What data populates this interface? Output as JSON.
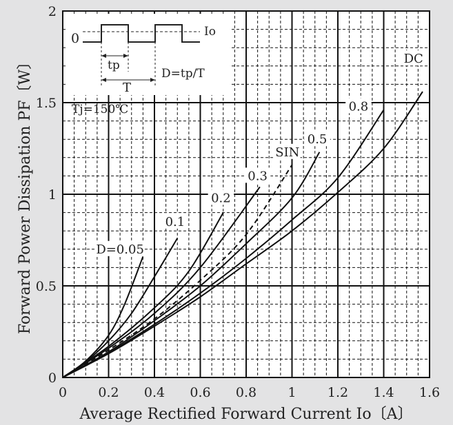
{
  "chart_data": {
    "type": "line",
    "title": "",
    "xlabel": "Average Rectified Forward Current Io〔A〕",
    "ylabel": "Forward Power Dissipation PF〔W〕",
    "xlim": [
      0,
      1.6
    ],
    "ylim": [
      0,
      2
    ],
    "x_ticks": [
      0,
      0.2,
      0.4,
      0.6,
      0.8,
      1,
      1.2,
      1.4,
      1.6
    ],
    "x_tick_labels": [
      "0",
      "0.2",
      "0.4",
      "0.6",
      "0.8",
      "1",
      "1.2",
      "1.4",
      "1.6"
    ],
    "y_ticks": [
      0,
      0.5,
      1,
      1.5,
      2
    ],
    "y_tick_labels": [
      "0",
      "0.5",
      "1",
      "1.5",
      "2"
    ],
    "grid": true,
    "series": [
      {
        "name": "D=0.05",
        "style": "solid",
        "points": [
          [
            0,
            0
          ],
          [
            0.1,
            0.09
          ],
          [
            0.2,
            0.23
          ],
          [
            0.27,
            0.4
          ],
          [
            0.35,
            0.66
          ]
        ]
      },
      {
        "name": "0.1",
        "style": "solid",
        "points": [
          [
            0,
            0
          ],
          [
            0.1,
            0.085
          ],
          [
            0.2,
            0.2
          ],
          [
            0.3,
            0.35
          ],
          [
            0.4,
            0.55
          ],
          [
            0.5,
            0.76
          ]
        ]
      },
      {
        "name": "0.2",
        "style": "solid",
        "points": [
          [
            0,
            0
          ],
          [
            0.2,
            0.17
          ],
          [
            0.4,
            0.38
          ],
          [
            0.55,
            0.58
          ],
          [
            0.7,
            0.9
          ]
        ]
      },
      {
        "name": "0.3",
        "style": "solid",
        "points": [
          [
            0,
            0
          ],
          [
            0.2,
            0.16
          ],
          [
            0.4,
            0.35
          ],
          [
            0.6,
            0.6
          ],
          [
            0.86,
            1.04
          ]
        ]
      },
      {
        "name": "SIN",
        "style": "dashed",
        "points": [
          [
            0,
            0
          ],
          [
            0.2,
            0.15
          ],
          [
            0.4,
            0.32
          ],
          [
            0.6,
            0.53
          ],
          [
            0.8,
            0.78
          ],
          [
            1,
            1.16
          ]
        ]
      },
      {
        "name": "0.5",
        "style": "solid",
        "points": [
          [
            0,
            0
          ],
          [
            0.2,
            0.14
          ],
          [
            0.4,
            0.31
          ],
          [
            0.6,
            0.5
          ],
          [
            0.8,
            0.73
          ],
          [
            1,
            0.98
          ],
          [
            1.12,
            1.23
          ]
        ]
      },
      {
        "name": "0.8",
        "style": "solid",
        "points": [
          [
            0,
            0
          ],
          [
            0.2,
            0.135
          ],
          [
            0.4,
            0.29
          ],
          [
            0.6,
            0.46
          ],
          [
            0.8,
            0.65
          ],
          [
            1,
            0.86
          ],
          [
            1.2,
            1.09
          ],
          [
            1.4,
            1.46
          ]
        ]
      },
      {
        "name": "DC",
        "style": "solid",
        "points": [
          [
            0,
            0
          ],
          [
            0.2,
            0.13
          ],
          [
            0.4,
            0.28
          ],
          [
            0.6,
            0.44
          ],
          [
            0.8,
            0.62
          ],
          [
            1,
            0.8
          ],
          [
            1.2,
            1.01
          ],
          [
            1.4,
            1.25
          ],
          [
            1.57,
            1.56
          ]
        ]
      }
    ],
    "series_labels": [
      {
        "text": "D=0.05",
        "x": 0.25,
        "y": 0.7
      },
      {
        "text": "0.1",
        "x": 0.49,
        "y": 0.85
      },
      {
        "text": "0.2",
        "x": 0.69,
        "y": 0.98
      },
      {
        "text": "0.3",
        "x": 0.85,
        "y": 1.1
      },
      {
        "text": "SIN",
        "x": 0.98,
        "y": 1.23
      },
      {
        "text": "0.5",
        "x": 1.11,
        "y": 1.3
      },
      {
        "text": "0.8",
        "x": 1.29,
        "y": 1.48
      },
      {
        "text": "DC",
        "x": 1.53,
        "y": 1.74
      }
    ],
    "annotations": {
      "tj": "Tj=150℃",
      "inset": {
        "zero": "0",
        "io": "Io",
        "tp": "tp",
        "t": "T",
        "duty": "D=tp/T"
      }
    }
  }
}
